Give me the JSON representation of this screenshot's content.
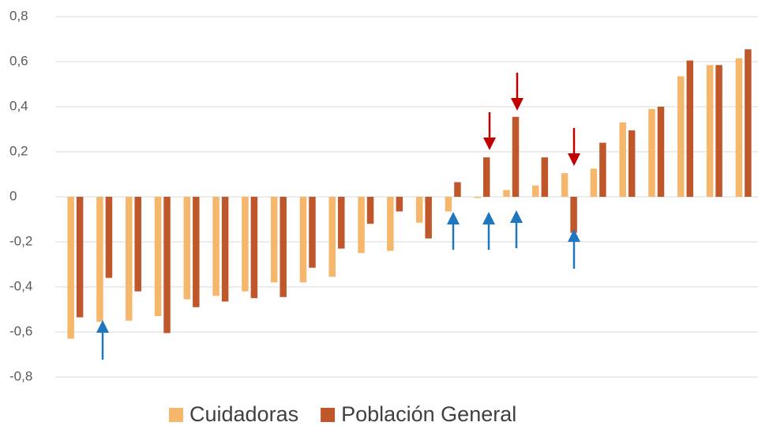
{
  "chart_data": {
    "type": "bar",
    "categories": [
      null,
      null,
      null,
      null,
      null,
      null,
      null,
      null,
      null,
      null,
      null,
      null,
      null,
      null,
      null,
      null,
      null,
      null,
      null,
      null,
      null,
      null,
      null,
      null
    ],
    "series": [
      {
        "name": "Cuidadoras",
        "color": "#f4b76b",
        "values": [
          -0.63,
          -0.555,
          -0.55,
          -0.53,
          -0.455,
          -0.44,
          -0.42,
          -0.38,
          -0.38,
          -0.355,
          -0.25,
          -0.24,
          -0.115,
          -0.065,
          -0.005,
          0.03,
          0.05,
          0.105,
          0.125,
          0.33,
          0.39,
          0.535,
          0.585,
          0.615
        ]
      },
      {
        "name": "Población General",
        "color": "#c0572b",
        "values": [
          -0.535,
          -0.36,
          -0.42,
          -0.605,
          -0.49,
          -0.465,
          -0.45,
          -0.445,
          -0.315,
          -0.23,
          -0.12,
          -0.065,
          -0.185,
          0.065,
          0.175,
          0.355,
          0.175,
          -0.16,
          0.24,
          0.295,
          0.4,
          0.605,
          0.585,
          0.655
        ]
      }
    ],
    "ylim": [
      -0.8,
      0.8
    ],
    "yticks": [
      {
        "value": -0.8,
        "label": "-0,8"
      },
      {
        "value": -0.6,
        "label": "-0,6"
      },
      {
        "value": -0.4,
        "label": "-0,4"
      },
      {
        "value": -0.2,
        "label": "-0,2"
      },
      0,
      {
        "value": 0.2,
        "label": "0,2"
      },
      {
        "value": 0.4,
        "label": "0,4"
      },
      {
        "value": 0.6,
        "label": "0,6"
      },
      {
        "value": 0.8,
        "label": "0,8"
      }
    ],
    "grid": true
  }
}
